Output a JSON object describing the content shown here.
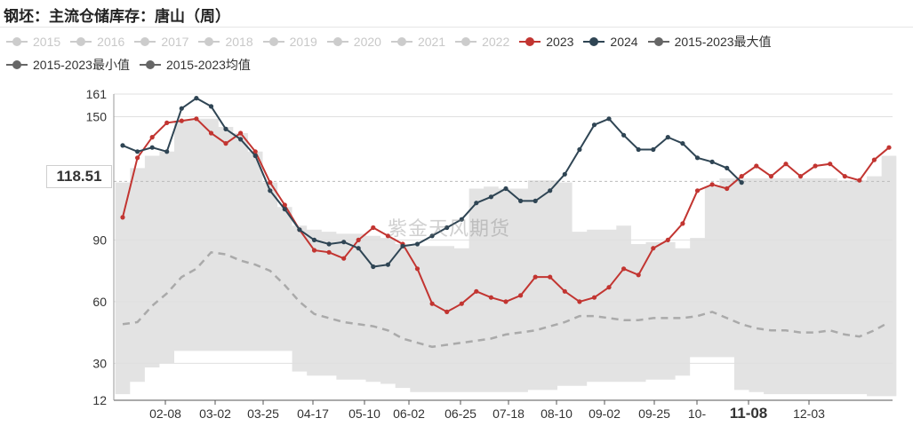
{
  "title": "钢坯：主流仓储库存：唐山（周）",
  "legend": {
    "row1": [
      {
        "label": "2015",
        "color": "#cccccc",
        "active": false
      },
      {
        "label": "2016",
        "color": "#cccccc",
        "active": false
      },
      {
        "label": "2017",
        "color": "#cccccc",
        "active": false
      },
      {
        "label": "2018",
        "color": "#cccccc",
        "active": false
      },
      {
        "label": "2019",
        "color": "#cccccc",
        "active": false
      },
      {
        "label": "2020",
        "color": "#cccccc",
        "active": false
      },
      {
        "label": "2021",
        "color": "#cccccc",
        "active": false
      },
      {
        "label": "2022",
        "color": "#cccccc",
        "active": false
      },
      {
        "label": "2023",
        "color": "#c23531",
        "active": true
      },
      {
        "label": "2024",
        "color": "#2f4554",
        "active": true
      },
      {
        "label": "2015-2023最大值",
        "color": "#666666",
        "active": true
      }
    ],
    "row2": [
      {
        "label": "2015-2023最小值",
        "color": "#666666",
        "active": true
      },
      {
        "label": "2015-2023均值",
        "color": "#666666",
        "active": true
      }
    ]
  },
  "watermark": "紫金天风期货",
  "current_value_label": "118.51",
  "chart_data": {
    "type": "line",
    "title": "钢坯：主流仓储库存：唐山（周）",
    "xlabel": "",
    "ylabel": "",
    "ylim": [
      12,
      161
    ],
    "y_ticks": [
      12,
      30,
      60,
      90,
      118.51,
      150,
      161
    ],
    "x_ticks": [
      "02-08",
      "03-02",
      "03-25",
      "04-17",
      "05-10",
      "06-02",
      "06-25",
      "07-18",
      "08-10",
      "09-02",
      "09-25",
      "10-",
      "11-08",
      "12-03"
    ],
    "highlighted_x_tick": "11-08",
    "grid": true,
    "legend_position": "top",
    "series": [
      {
        "name": "2023",
        "color": "#c23531",
        "values": [
          101,
          130,
          140,
          147,
          148,
          149,
          142,
          137,
          142,
          133,
          118,
          107,
          95,
          85,
          84,
          81,
          90,
          96,
          92,
          88,
          76,
          59,
          55,
          59,
          65,
          62,
          60,
          63,
          72,
          72,
          65,
          60,
          62,
          67,
          76,
          73,
          86,
          90,
          98,
          114,
          117,
          115,
          121,
          126,
          121,
          127,
          121,
          126,
          127,
          121,
          119,
          129,
          135
        ]
      },
      {
        "name": "2024",
        "color": "#2f4554",
        "values": [
          136,
          133,
          135,
          133,
          154,
          159,
          155,
          144,
          139,
          131,
          114,
          105,
          95,
          90,
          88,
          89,
          86,
          77,
          78,
          87,
          88,
          92,
          96,
          100,
          108,
          111,
          115,
          109,
          109,
          114,
          122,
          134,
          146,
          149,
          141,
          134,
          134,
          140,
          137,
          130,
          128,
          125,
          118
        ]
      },
      {
        "name": "2015-2023最大值",
        "color": "#666666",
        "values": [
          118,
          125,
          131,
          133,
          148,
          149,
          149,
          145,
          142,
          133,
          118,
          106,
          97,
          95,
          94,
          93,
          93,
          92,
          91,
          88,
          87,
          87,
          87,
          86,
          115,
          116,
          115,
          115,
          119,
          119,
          118,
          94,
          95,
          95,
          97,
          88,
          89,
          89,
          86,
          91,
          116,
          120,
          120,
          120,
          120,
          120,
          120,
          120,
          120,
          119,
          119,
          121,
          131
        ]
      },
      {
        "name": "2015-2023最小值",
        "color": "#666666",
        "values": [
          15,
          21,
          28,
          30,
          36,
          36,
          36,
          36,
          36,
          36,
          36,
          36,
          26,
          24,
          24,
          22,
          22,
          21,
          20,
          18,
          16,
          16,
          16,
          16,
          16,
          16,
          16,
          16,
          17,
          17,
          19,
          19,
          21,
          21,
          21,
          21,
          22,
          22,
          24,
          33,
          33,
          33,
          17,
          16,
          15,
          15,
          15,
          15,
          15,
          15,
          15,
          14,
          14
        ]
      },
      {
        "name": "2015-2023均值",
        "color": "#666666",
        "values": [
          49,
          50,
          58,
          64,
          72,
          76,
          84,
          83,
          80,
          78,
          75,
          68,
          60,
          54,
          52,
          50,
          49,
          48,
          46,
          42,
          40,
          38,
          39,
          40,
          41,
          42,
          44,
          45,
          46,
          48,
          50,
          53,
          53,
          52,
          51,
          51,
          52,
          52,
          52,
          53,
          55,
          52,
          49,
          47,
          46,
          46,
          45,
          45,
          46,
          44,
          43,
          46,
          50
        ]
      }
    ]
  }
}
